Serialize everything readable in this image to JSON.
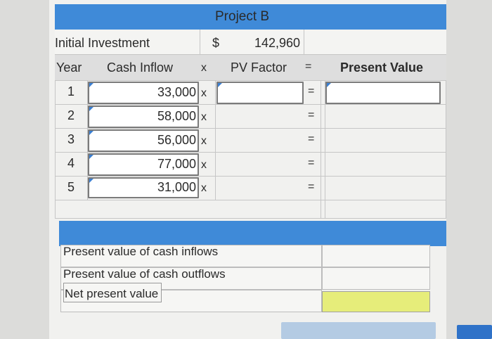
{
  "header": {
    "project": "Project B"
  },
  "initial": {
    "label": "Initial Investment",
    "currency": "$",
    "amount": "142,960"
  },
  "columns": {
    "year": "Year",
    "cash_inflow": "Cash Inflow",
    "times": "x",
    "pv_factor": "PV Factor",
    "equals": "=",
    "present_value": "Present Value"
  },
  "rows": [
    {
      "year": "1",
      "inflow": "33,000",
      "times": "x",
      "equals": "="
    },
    {
      "year": "2",
      "inflow": "58,000",
      "times": "x",
      "equals": "="
    },
    {
      "year": "3",
      "inflow": "56,000",
      "times": "x",
      "equals": "="
    },
    {
      "year": "4",
      "inflow": "77,000",
      "times": "x",
      "equals": "="
    },
    {
      "year": "5",
      "inflow": "31,000",
      "times": "x",
      "equals": "="
    }
  ],
  "summary": {
    "pv_inflows": "Present value of cash inflows",
    "pv_outflows": "Present value of cash outflows",
    "npv": "Net present value"
  },
  "colors": {
    "band": "#3f8ad8",
    "highlight": "#e6ed7a"
  }
}
